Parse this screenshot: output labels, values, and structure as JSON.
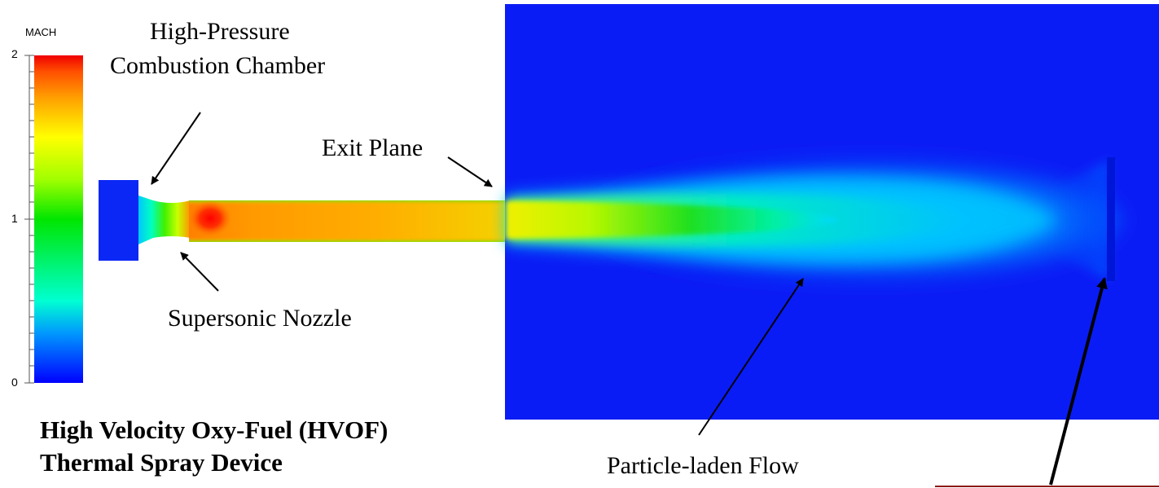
{
  "colorbar": {
    "title": "MACH",
    "ticks": {
      "max": "2",
      "mid": "1",
      "min": "0"
    },
    "range": [
      0,
      2
    ],
    "colors": [
      "#0000ff",
      "#0096ff",
      "#00ffd2",
      "#00e600",
      "#a0ff00",
      "#ffff00",
      "#ffa000",
      "#ff5000",
      "#f00000"
    ]
  },
  "labels": {
    "chamber_line1": "High-Pressure",
    "chamber_line2": "Combustion Chamber",
    "exit_plane": "Exit Plane",
    "nozzle": "Supersonic Nozzle",
    "flow": "Particle-laden Flow"
  },
  "caption": {
    "line1": "High Velocity Oxy-Fuel (HVOF)",
    "line2": "Thermal Spray Device"
  },
  "colors": {
    "freestream_blue": "#0a1cf5",
    "arrow": "#000000",
    "substrate_line": "#8b1a1a"
  }
}
